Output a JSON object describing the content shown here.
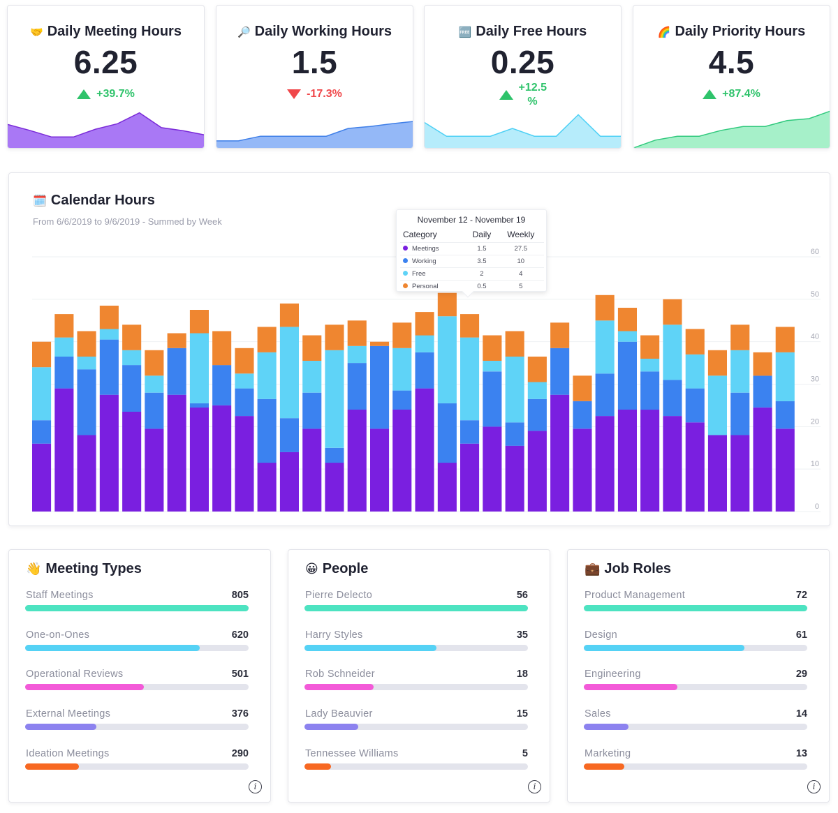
{
  "kpis": [
    {
      "emoji": "🤝",
      "title": "Daily Meeting Hours",
      "value": "6.25",
      "delta": "+39.7%",
      "direction": "up",
      "color": "#a978f5",
      "stroke": "#7a2ad8",
      "trend": [
        0.6,
        0.45,
        0.28,
        0.28,
        0.48,
        0.62,
        0.9,
        0.52,
        0.44,
        0.33
      ]
    },
    {
      "emoji": "🔎",
      "title": "Daily Working Hours",
      "value": "1.5",
      "delta": "-17.3%",
      "direction": "down",
      "color": "#94b8f7",
      "stroke": "#3f7fe8",
      "trend": [
        0.18,
        0.18,
        0.3,
        0.3,
        0.3,
        0.3,
        0.5,
        0.55,
        0.62,
        0.68
      ]
    },
    {
      "emoji": "🆓",
      "title": "Daily Free Hours",
      "value": "0.25",
      "delta": "+12.5\n%",
      "direction": "up",
      "color": "#b6ecfb",
      "stroke": "#4dd0f5",
      "trend": [
        0.65,
        0.3,
        0.3,
        0.3,
        0.5,
        0.3,
        0.3,
        0.85,
        0.3,
        0.3
      ]
    },
    {
      "emoji": "🌈",
      "title": "Daily Priority Hours",
      "value": "4.5",
      "delta": "+87.4%",
      "direction": "up",
      "color": "#a6f0c9",
      "stroke": "#30c97d",
      "trend": [
        0.0,
        0.2,
        0.3,
        0.3,
        0.45,
        0.55,
        0.55,
        0.7,
        0.75,
        0.95
      ]
    }
  ],
  "calendar": {
    "emoji": "🗓️",
    "title": "Calendar Hours",
    "subtitle": "From 6/6/2019 to 9/6/2019 - Summed by Week",
    "tooltip": {
      "title": "November 12 - November 19",
      "headers": [
        "Category",
        "Daily",
        "Weekly"
      ],
      "rows": [
        {
          "name": "Meetings",
          "daily": "1.5",
          "weekly": "27.5",
          "color": "#7a1fe0"
        },
        {
          "name": "Working",
          "daily": "3.5",
          "weekly": "10",
          "color": "#3b82f0"
        },
        {
          "name": "Free",
          "daily": "2",
          "weekly": "4",
          "color": "#5fd3f7"
        },
        {
          "name": "Personal",
          "daily": "0.5",
          "weekly": "5",
          "color": "#ef8630"
        }
      ]
    }
  },
  "chart_data": {
    "type": "bar",
    "stacked": true,
    "title": "Calendar Hours",
    "ylim": [
      0,
      60
    ],
    "yticks": [
      "0",
      "10",
      "20",
      "30",
      "40",
      "50",
      "60"
    ],
    "grid": true,
    "series": [
      {
        "name": "Meetings",
        "color": "#7a1fe0",
        "values": [
          16,
          29,
          18,
          27.5,
          23.5,
          19.5,
          27.5,
          24.5,
          25,
          22.5,
          11.5,
          14,
          19.5,
          11.5,
          24,
          19.5,
          24,
          29,
          11.5,
          16,
          20,
          15.5,
          19,
          27.5,
          19.5,
          22.5,
          24,
          24,
          22.5,
          21,
          18,
          18,
          24.5,
          19.5
        ]
      },
      {
        "name": "Working",
        "color": "#3b82f0",
        "values": [
          5.5,
          7.5,
          15.5,
          13,
          11,
          8.5,
          11,
          1,
          9.5,
          6.5,
          15,
          8,
          8.5,
          3.5,
          11,
          19.5,
          4.5,
          8.5,
          14,
          5.5,
          13,
          5.5,
          7.5,
          11,
          6.5,
          10,
          16,
          9,
          8.5,
          8,
          0,
          10,
          7.5,
          6.5
        ]
      },
      {
        "name": "Free",
        "color": "#5fd3f7",
        "values": [
          12.5,
          4.5,
          3,
          2.5,
          3.5,
          4,
          0,
          16.5,
          0,
          3.5,
          11,
          21.5,
          7.5,
          23,
          4,
          0,
          10,
          4,
          20.5,
          19.5,
          2.5,
          15.5,
          4,
          0,
          0,
          12.5,
          2.5,
          3,
          13,
          8,
          14,
          10,
          0,
          11.5
        ]
      },
      {
        "name": "Personal",
        "color": "#ef8630",
        "values": [
          6,
          5.5,
          6,
          5.5,
          6,
          6,
          3.5,
          5.5,
          8,
          6,
          6,
          5.5,
          6,
          6,
          6,
          1,
          6,
          5.5,
          5.5,
          5.5,
          6,
          6,
          6,
          6,
          6,
          6,
          5.5,
          5.5,
          6,
          6,
          6,
          6,
          5.5,
          6
        ]
      }
    ]
  },
  "lists": [
    {
      "emoji": "👋",
      "title": "Meeting Types",
      "items": [
        {
          "label": "Staff Meetings",
          "value": "805",
          "fill": 1.0,
          "color": "#4de3c1"
        },
        {
          "label": "One-on-Ones",
          "value": "620",
          "fill": 0.78,
          "color": "#55d2f5"
        },
        {
          "label": "Operational Reviews",
          "value": "501",
          "fill": 0.53,
          "color": "#f35ad8"
        },
        {
          "label": "External Meetings",
          "value": "376",
          "fill": 0.32,
          "color": "#8c82ef"
        },
        {
          "label": "Ideation Meetings",
          "value": "290",
          "fill": 0.24,
          "color": "#f76822"
        }
      ]
    },
    {
      "emoji": "😀",
      "title": "People",
      "items": [
        {
          "label": "Pierre Delecto",
          "value": "56",
          "fill": 1.0,
          "color": "#4de3c1"
        },
        {
          "label": "Harry Styles",
          "value": "35",
          "fill": 0.59,
          "color": "#55d2f5"
        },
        {
          "label": "Rob Schneider",
          "value": "18",
          "fill": 0.31,
          "color": "#f35ad8"
        },
        {
          "label": "Lady Beauvier",
          "value": "15",
          "fill": 0.24,
          "color": "#8c82ef"
        },
        {
          "label": "Tennessee Williams",
          "value": "5",
          "fill": 0.12,
          "color": "#f76822"
        }
      ]
    },
    {
      "emoji": "💼",
      "title": "Job Roles",
      "items": [
        {
          "label": "Product Management",
          "value": "72",
          "fill": 1.0,
          "color": "#4de3c1"
        },
        {
          "label": "Design",
          "value": "61",
          "fill": 0.72,
          "color": "#55d2f5"
        },
        {
          "label": "Engineering",
          "value": "29",
          "fill": 0.42,
          "color": "#f35ad8"
        },
        {
          "label": "Sales",
          "value": "14",
          "fill": 0.2,
          "color": "#8c82ef"
        },
        {
          "label": "Marketing",
          "value": "13",
          "fill": 0.18,
          "color": "#f76822"
        }
      ]
    }
  ],
  "info_icon_glyph": "i"
}
